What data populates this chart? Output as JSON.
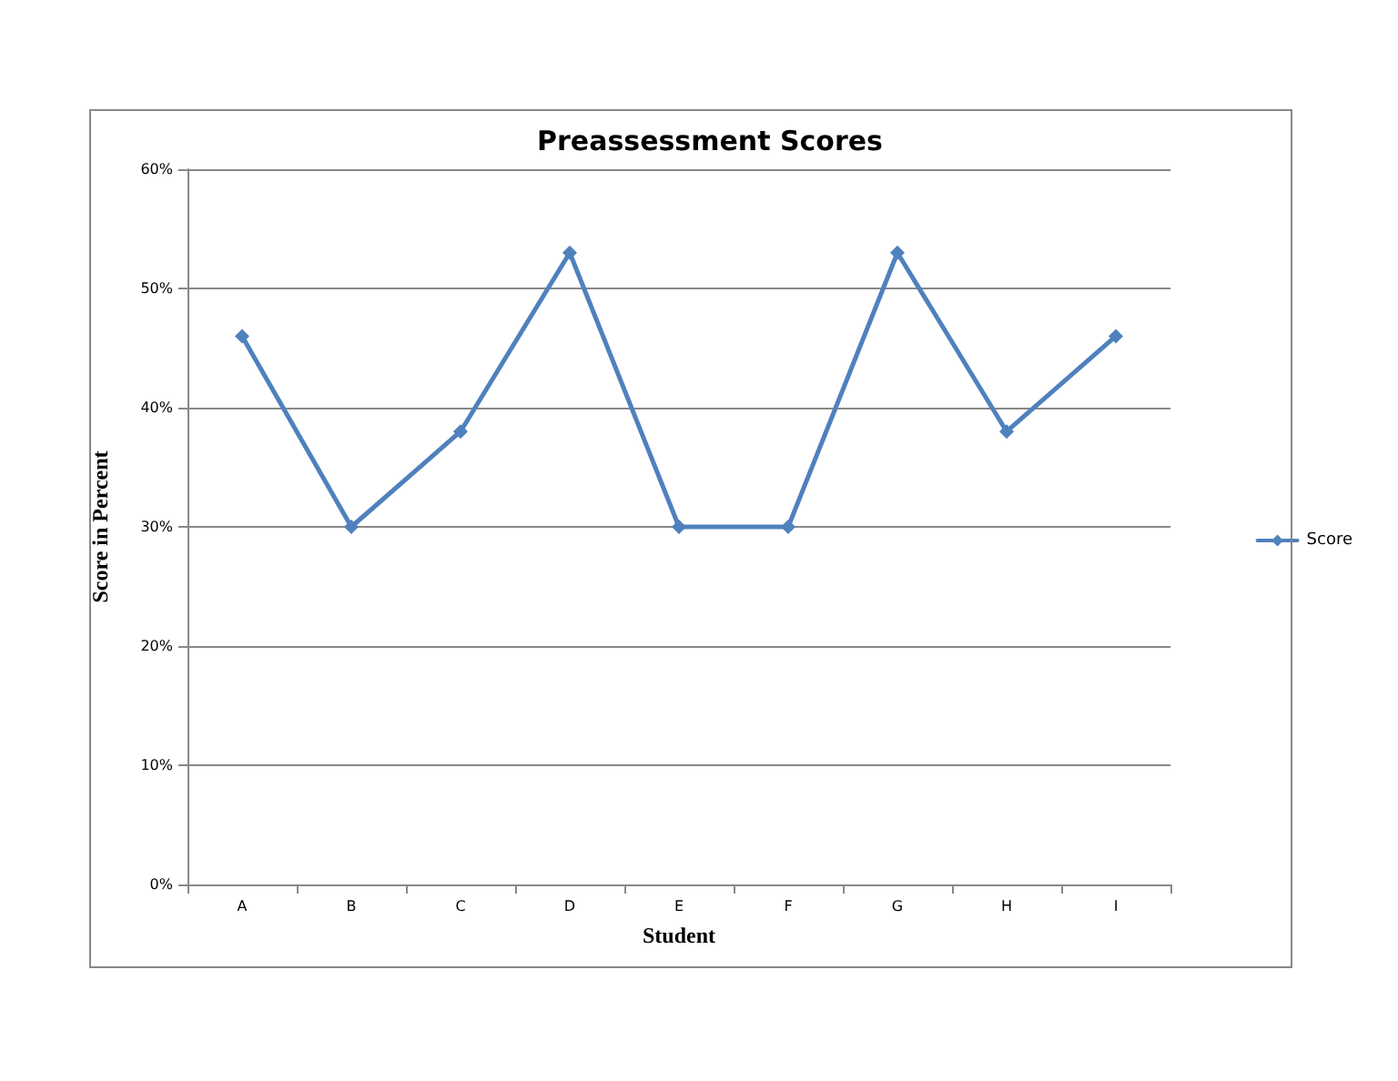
{
  "chart_data": {
    "type": "line",
    "title": "Preassessment Scores",
    "xlabel": "Student",
    "ylabel": "Score in Percent",
    "categories": [
      "A",
      "B",
      "C",
      "D",
      "E",
      "F",
      "G",
      "H",
      "I"
    ],
    "series": [
      {
        "name": "Score",
        "color": "#4f81bd",
        "values": [
          46,
          30,
          38,
          53,
          30,
          30,
          53,
          38,
          46
        ]
      }
    ],
    "ylim": [
      0,
      60
    ],
    "yticks": [
      {
        "value": 0,
        "label": "0%"
      },
      {
        "value": 10,
        "label": "10%"
      },
      {
        "value": 20,
        "label": "20%"
      },
      {
        "value": 30,
        "label": "30%"
      },
      {
        "value": 40,
        "label": "40%"
      },
      {
        "value": 50,
        "label": "50%"
      },
      {
        "value": 60,
        "label": "60%"
      }
    ],
    "grid": "y",
    "legend": "right",
    "marker": "diamond",
    "line_style": "solid"
  }
}
